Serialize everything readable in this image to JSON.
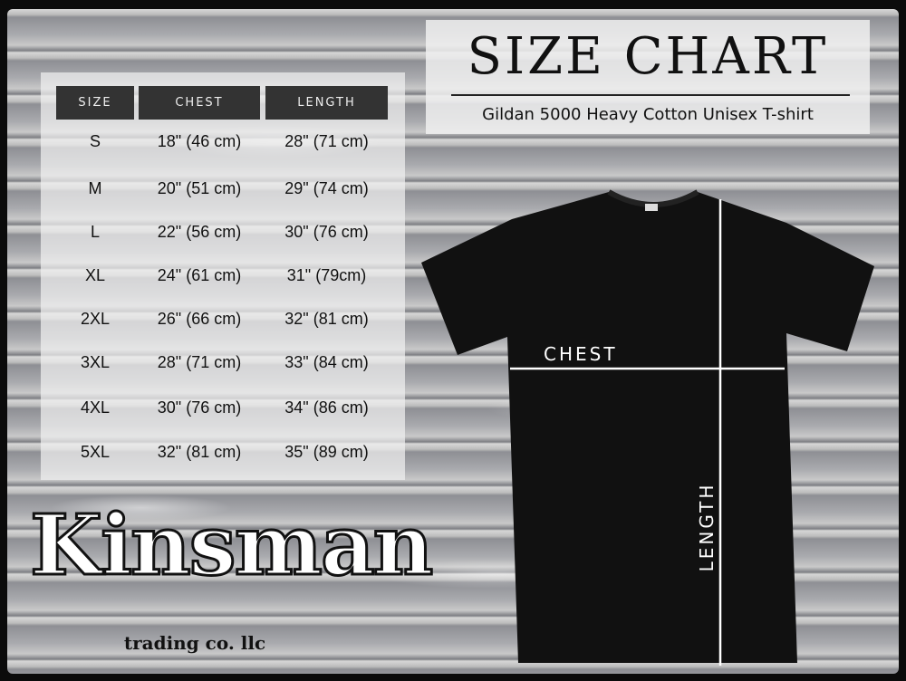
{
  "title": "SIZE CHART",
  "subtitle": "Gildan 5000 Heavy Cotton Unisex T-shirt",
  "table": {
    "headers": [
      "SIZE",
      "CHEST",
      "LENGTH"
    ],
    "rows": [
      [
        "S",
        "18\" (46 cm)",
        "28\" (71 cm)"
      ],
      [
        "M",
        "20\" (51 cm)",
        "29\" (74 cm)"
      ],
      [
        "L",
        "22\" (56 cm)",
        "30\" (76 cm)"
      ],
      [
        "XL",
        "24\" (61 cm)",
        "31\" (79cm)"
      ],
      [
        "2XL",
        "26\" (66 cm)",
        "32\" (81 cm)"
      ],
      [
        "3XL",
        "28\" (71 cm)",
        "33\" (84 cm)"
      ],
      [
        "4XL",
        "30\" (76 cm)",
        "34\" (86 cm)"
      ],
      [
        "5XL",
        "32\" (81 cm)",
        "35\" (89 cm)"
      ]
    ]
  },
  "diagram": {
    "chest_label": "CHEST",
    "length_label": "LENGTH",
    "shirt_color": "#111111",
    "line_color": "#ffffff"
  },
  "logo": {
    "name": "Kinsman",
    "tagline": "trading co. llc"
  }
}
